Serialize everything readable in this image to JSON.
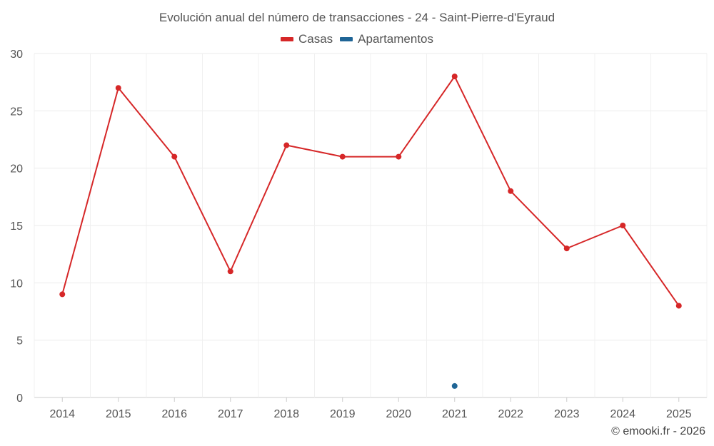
{
  "chart_data": {
    "type": "line",
    "title": "Evolución anual del número de transacciones - 24 - Saint-Pierre-d'Eyraud",
    "categories": [
      "2014",
      "2015",
      "2016",
      "2017",
      "2018",
      "2019",
      "2020",
      "2021",
      "2022",
      "2023",
      "2024",
      "2025"
    ],
    "series": [
      {
        "name": "Casas",
        "color": "#d62728",
        "values": [
          9,
          27,
          21,
          11,
          22,
          21,
          21,
          28,
          18,
          13,
          15,
          8
        ]
      },
      {
        "name": "Apartamentos",
        "color": "#1f6596",
        "values": [
          null,
          null,
          null,
          null,
          null,
          null,
          null,
          1,
          null,
          null,
          null,
          null
        ]
      }
    ],
    "ylim": [
      0,
      30
    ],
    "yticks": [
      0,
      5,
      10,
      15,
      20,
      25,
      30
    ],
    "grid": true,
    "legend": "top-center",
    "xlabel": "",
    "ylabel": ""
  },
  "credit": "© emooki.fr - 2026"
}
